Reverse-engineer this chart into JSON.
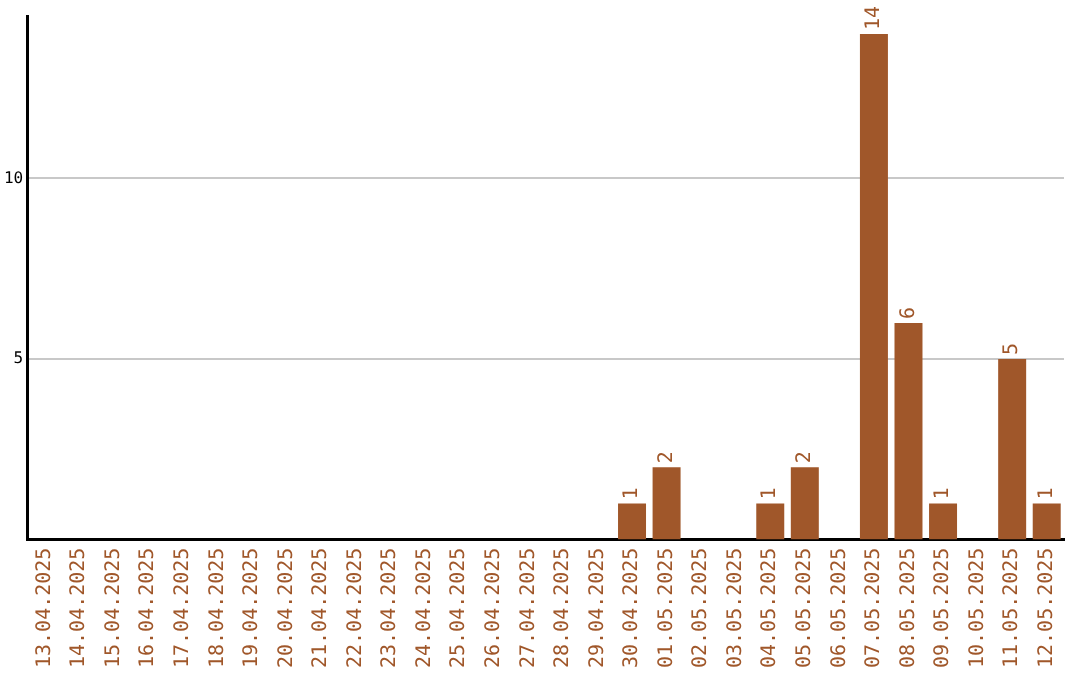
{
  "chart_data": {
    "type": "bar",
    "categories": [
      "13.04.2025",
      "14.04.2025",
      "15.04.2025",
      "16.04.2025",
      "17.04.2025",
      "18.04.2025",
      "19.04.2025",
      "20.04.2025",
      "21.04.2025",
      "22.04.2025",
      "23.04.2025",
      "24.04.2025",
      "25.04.2025",
      "26.04.2025",
      "27.04.2025",
      "28.04.2025",
      "29.04.2025",
      "30.04.2025",
      "01.05.2025",
      "02.05.2025",
      "03.05.2025",
      "04.05.2025",
      "05.05.2025",
      "06.05.2025",
      "07.05.2025",
      "08.05.2025",
      "09.05.2025",
      "10.05.2025",
      "11.05.2025",
      "12.05.2025"
    ],
    "values": [
      0,
      0,
      0,
      0,
      0,
      0,
      0,
      0,
      0,
      0,
      0,
      0,
      0,
      0,
      0,
      0,
      0,
      1,
      2,
      0,
      0,
      1,
      2,
      0,
      14,
      6,
      1,
      0,
      5,
      1
    ],
    "value_labels": [
      null,
      null,
      null,
      null,
      null,
      null,
      null,
      null,
      null,
      null,
      null,
      null,
      null,
      null,
      null,
      null,
      null,
      "1",
      "2",
      null,
      null,
      "1",
      "2",
      null,
      "14",
      "6",
      "1",
      null,
      "5",
      "1"
    ],
    "color": "#a0572a",
    "ylim": [
      0,
      14.5
    ],
    "yticks": [
      5,
      10
    ],
    "grid": "y",
    "legend": false
  }
}
